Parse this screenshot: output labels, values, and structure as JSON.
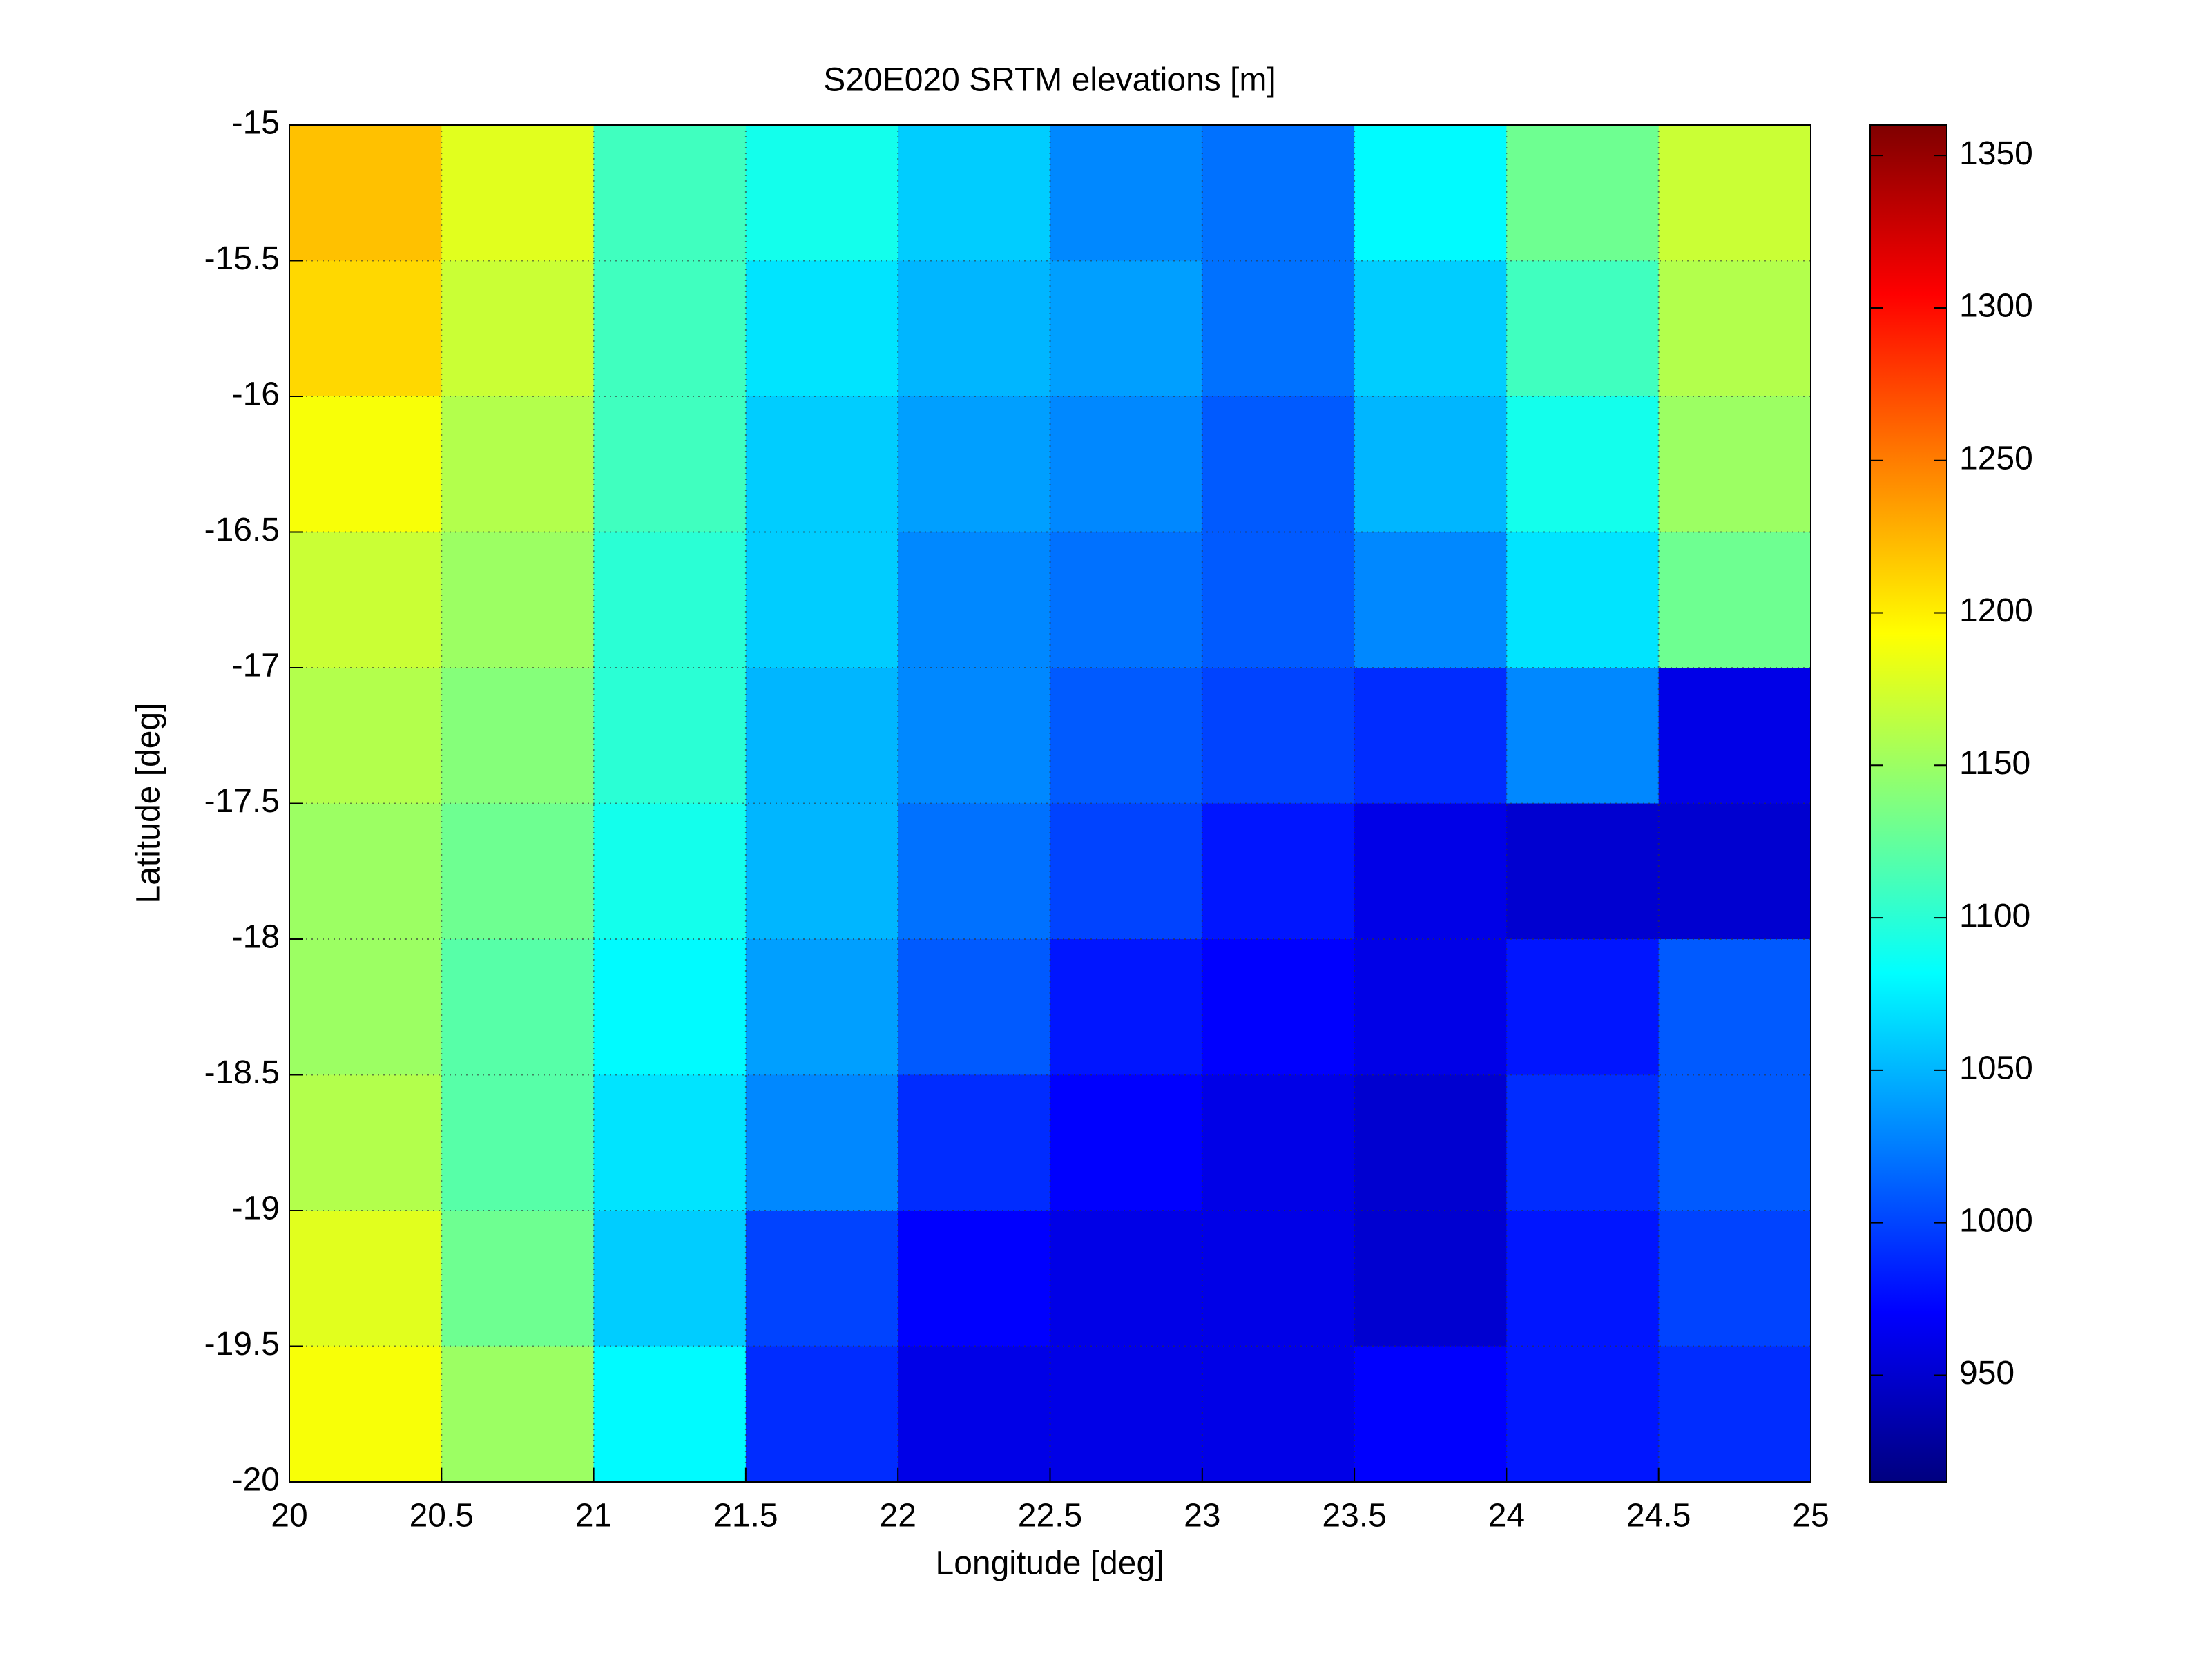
{
  "chart_data": {
    "type": "heatmap",
    "title": "S20E020 SRTM elevations [m]",
    "x_label": "Longitude [deg]",
    "y_label": "Latitude [deg]",
    "colormap": "jet",
    "grid": true,
    "xlim": [
      20,
      25
    ],
    "ylim": [
      -20,
      -15
    ],
    "xticks": [
      20,
      20.5,
      21,
      21.5,
      22,
      22.5,
      23,
      23.5,
      24,
      24.5,
      25
    ],
    "yticks": [
      -15,
      -15.5,
      -16,
      -16.5,
      -17,
      -17.5,
      -18,
      -18.5,
      -19,
      -19.5,
      -20
    ],
    "x": [
      20.25,
      20.75,
      21.25,
      21.75,
      22.25,
      22.75,
      23.25,
      23.75,
      24.25,
      24.75
    ],
    "y": [
      -15.25,
      -15.75,
      -16.25,
      -16.75,
      -17.25,
      -17.75,
      -18.25,
      -18.75,
      -19.25,
      -19.75
    ],
    "z": [
      [
        1220,
        1180,
        1110,
        1090,
        1060,
        1030,
        1020,
        1080,
        1130,
        1170
      ],
      [
        1210,
        1170,
        1110,
        1070,
        1050,
        1040,
        1020,
        1060,
        1110,
        1160
      ],
      [
        1190,
        1160,
        1110,
        1060,
        1040,
        1030,
        1010,
        1050,
        1090,
        1150
      ],
      [
        1170,
        1150,
        1100,
        1060,
        1030,
        1020,
        1010,
        1030,
        1070,
        1130
      ],
      [
        1160,
        1140,
        1100,
        1050,
        1030,
        1010,
        1000,
        990,
        1030,
        960
      ],
      [
        1150,
        1130,
        1090,
        1050,
        1020,
        1000,
        980,
        960,
        950,
        950
      ],
      [
        1150,
        1120,
        1080,
        1040,
        1010,
        980,
        970,
        960,
        980,
        1010
      ],
      [
        1160,
        1120,
        1070,
        1030,
        990,
        970,
        960,
        950,
        990,
        1010
      ],
      [
        1180,
        1130,
        1060,
        1000,
        970,
        960,
        960,
        950,
        980,
        1000
      ],
      [
        1190,
        1150,
        1080,
        990,
        960,
        960,
        960,
        970,
        980,
        990
      ]
    ],
    "clim": [
      915,
      1360
    ],
    "colorbar_ticks": [
      950,
      1000,
      1050,
      1100,
      1150,
      1200,
      1250,
      1300,
      1350
    ]
  }
}
